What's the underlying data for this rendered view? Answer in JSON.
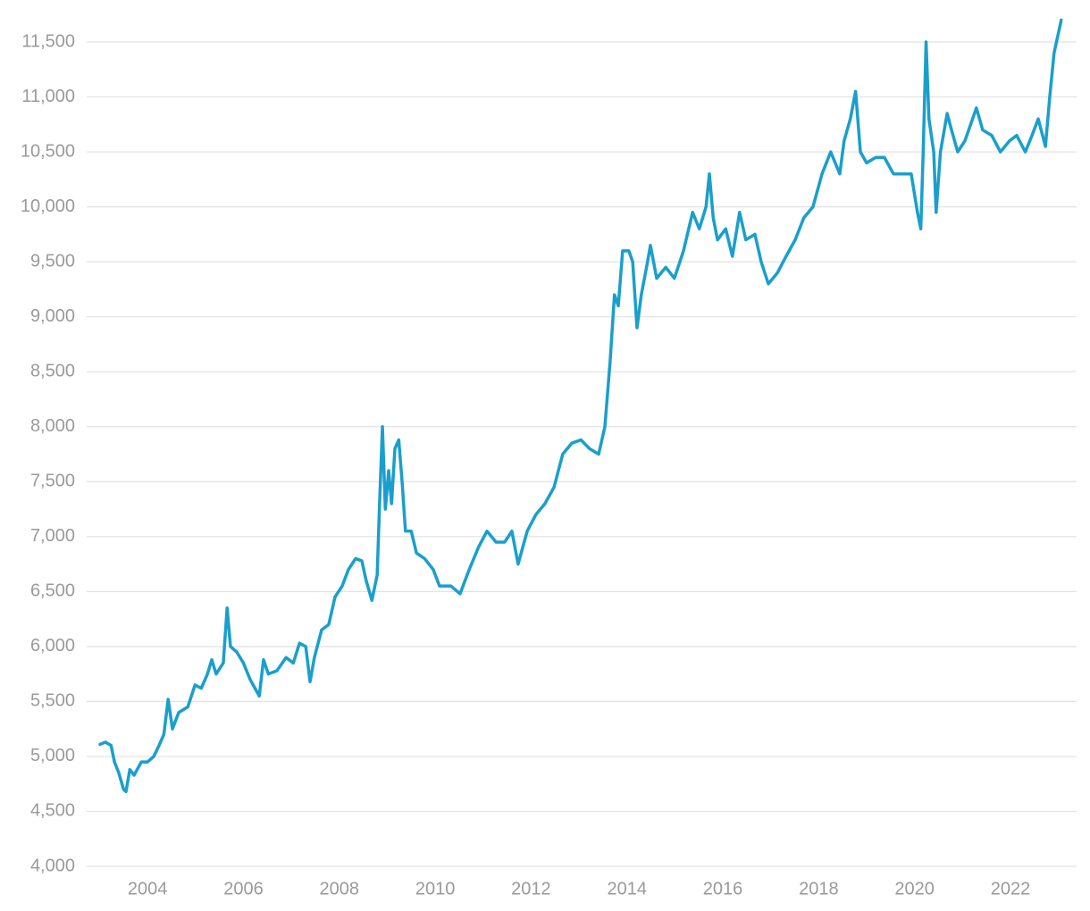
{
  "chart_data": {
    "type": "line",
    "x": [
      2003.01,
      2003.12,
      2003.24,
      2003.31,
      2003.4,
      2003.5,
      2003.55,
      2003.63,
      2003.72,
      2003.87,
      2004.0,
      2004.13,
      2004.24,
      2004.34,
      2004.43,
      2004.52,
      2004.65,
      2004.84,
      2004.99,
      2005.12,
      2005.25,
      2005.34,
      2005.43,
      2005.58,
      2005.66,
      2005.73,
      2005.86,
      2006.0,
      2006.14,
      2006.33,
      2006.42,
      2006.52,
      2006.7,
      2006.89,
      2007.04,
      2007.17,
      2007.3,
      2007.39,
      2007.48,
      2007.63,
      2007.78,
      2007.91,
      2008.06,
      2008.19,
      2008.34,
      2008.47,
      2008.56,
      2008.68,
      2008.79,
      2008.84,
      2008.9,
      2008.96,
      2009.03,
      2009.09,
      2009.16,
      2009.24,
      2009.31,
      2009.38,
      2009.5,
      2009.61,
      2009.78,
      2009.96,
      2010.09,
      2010.33,
      2010.52,
      2010.71,
      2010.9,
      2011.08,
      2011.27,
      2011.45,
      2011.6,
      2011.73,
      2011.92,
      2012.1,
      2012.29,
      2012.48,
      2012.66,
      2012.85,
      2013.04,
      2013.22,
      2013.41,
      2013.54,
      2013.65,
      2013.74,
      2013.82,
      2013.91,
      2014.04,
      2014.12,
      2014.21,
      2014.3,
      2014.43,
      2014.49,
      2014.62,
      2014.81,
      2014.99,
      2015.18,
      2015.37,
      2015.51,
      2015.65,
      2015.72,
      2015.8,
      2015.89,
      2016.06,
      2016.2,
      2016.35,
      2016.48,
      2016.67,
      2016.8,
      2016.95,
      2017.14,
      2017.32,
      2017.51,
      2017.69,
      2017.88,
      2018.07,
      2018.25,
      2018.44,
      2018.53,
      2018.66,
      2018.77,
      2018.87,
      2019.0,
      2019.19,
      2019.37,
      2019.56,
      2019.74,
      2019.93,
      2020.06,
      2020.13,
      2020.18,
      2020.24,
      2020.3,
      2020.4,
      2020.45,
      2020.54,
      2020.68,
      2020.77,
      2020.9,
      2021.05,
      2021.29,
      2021.42,
      2021.61,
      2021.79,
      2021.98,
      2022.13,
      2022.31,
      2022.45,
      2022.58,
      2022.73,
      2022.82,
      2022.91,
      2023.06
    ],
    "series": [
      {
        "color": "#1a9fcc",
        "values": [
          5110,
          5130,
          5100,
          4950,
          4850,
          4700,
          4680,
          4880,
          4830,
          4950,
          4950,
          5000,
          5100,
          5200,
          5520,
          5250,
          5400,
          5450,
          5650,
          5620,
          5750,
          5880,
          5750,
          5850,
          6350,
          6000,
          5950,
          5850,
          5700,
          5550,
          5880,
          5750,
          5780,
          5900,
          5850,
          6030,
          6000,
          5680,
          5900,
          6150,
          6200,
          6450,
          6550,
          6700,
          6800,
          6780,
          6600,
          6420,
          6650,
          7300,
          8000,
          7250,
          7600,
          7300,
          7800,
          7880,
          7500,
          7050,
          7050,
          6850,
          6800,
          6700,
          6550,
          6550,
          6480,
          6700,
          6900,
          7050,
          6950,
          6950,
          7050,
          6750,
          7050,
          7200,
          7300,
          7450,
          7750,
          7850,
          7880,
          7800,
          7750,
          8000,
          8600,
          9200,
          9100,
          9600,
          9600,
          9500,
          8900,
          9200,
          9500,
          9650,
          9350,
          9450,
          9350,
          9600,
          9950,
          9800,
          10000,
          10300,
          9900,
          9700,
          9800,
          9550,
          9950,
          9700,
          9750,
          9500,
          9300,
          9400,
          9550,
          9700,
          9900,
          10000,
          10300,
          10500,
          10300,
          10600,
          10800,
          11050,
          10500,
          10400,
          10450,
          10450,
          10300,
          10300,
          10300,
          9950,
          9800,
          10500,
          11500,
          10800,
          10500,
          9950,
          10500,
          10850,
          10700,
          10500,
          10600,
          10900,
          10700,
          10650,
          10500,
          10600,
          10650,
          10500,
          10650,
          10800,
          10550,
          11000,
          11400,
          11700
        ]
      }
    ],
    "xlim": [
      2002.73,
      2023.38
    ],
    "xticks": [
      2004,
      2006,
      2008,
      2010,
      2012,
      2014,
      2016,
      2018,
      2020,
      2022
    ],
    "ylim": [
      4000,
      11700
    ],
    "yticks": [
      {
        "value": 4000,
        "label": "4,000"
      },
      {
        "value": 4500,
        "label": "4,500"
      },
      {
        "value": 5000,
        "label": "5,000"
      },
      {
        "value": 5500,
        "label": "5,500"
      },
      {
        "value": 6000,
        "label": "6,000"
      },
      {
        "value": 6500,
        "label": "6,500"
      },
      {
        "value": 7000,
        "label": "7,000"
      },
      {
        "value": 7500,
        "label": "7,500"
      },
      {
        "value": 8000,
        "label": "8,000"
      },
      {
        "value": 8500,
        "label": "8,500"
      },
      {
        "value": 9000,
        "label": "9,000"
      },
      {
        "value": 9500,
        "label": "9,500"
      },
      {
        "value": 10000,
        "label": "10,000"
      },
      {
        "value": 10500,
        "label": "10,500"
      },
      {
        "value": 11000,
        "label": "11,000"
      },
      {
        "value": 11500,
        "label": "11,500"
      }
    ],
    "grid": true
  }
}
